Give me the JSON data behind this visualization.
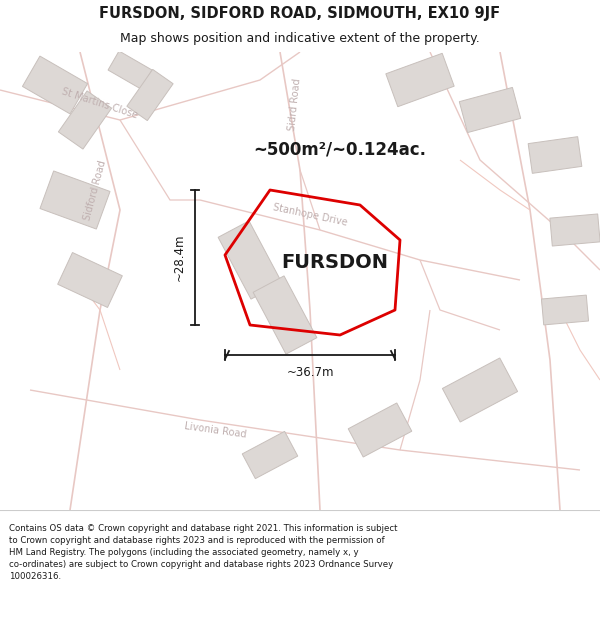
{
  "title": "FURSDON, SIDFORD ROAD, SIDMOUTH, EX10 9JF",
  "subtitle": "Map shows position and indicative extent of the property.",
  "footer": "Contains OS data © Crown copyright and database right 2021. This information is subject\nto Crown copyright and database rights 2023 and is reproduced with the permission of\nHM Land Registry. The polygons (including the associated geometry, namely x, y\nco-ordinates) are subject to Crown copyright and database rights 2023 Ordnance Survey\n100026316.",
  "property_name": "FURSDON",
  "area_text": "~500m²/~0.124ac.",
  "width_text": "~36.7m",
  "height_text": "~28.4m",
  "map_bg": "#f7f4f2",
  "road_thin_color": "#e8c8c4",
  "road_label_color": "#c0b0b0",
  "building_fill": "#ddd8d5",
  "building_edge": "#c8c0bc",
  "plot_edge": "#dd0000",
  "dim_color": "#1a1a1a",
  "text_color": "#1a1a1a",
  "bg_white": "#ffffff",
  "title_fontsize": 10.5,
  "subtitle_fontsize": 9,
  "footer_fontsize": 6.2,
  "prop_label_fontsize": 14,
  "area_fontsize": 12
}
